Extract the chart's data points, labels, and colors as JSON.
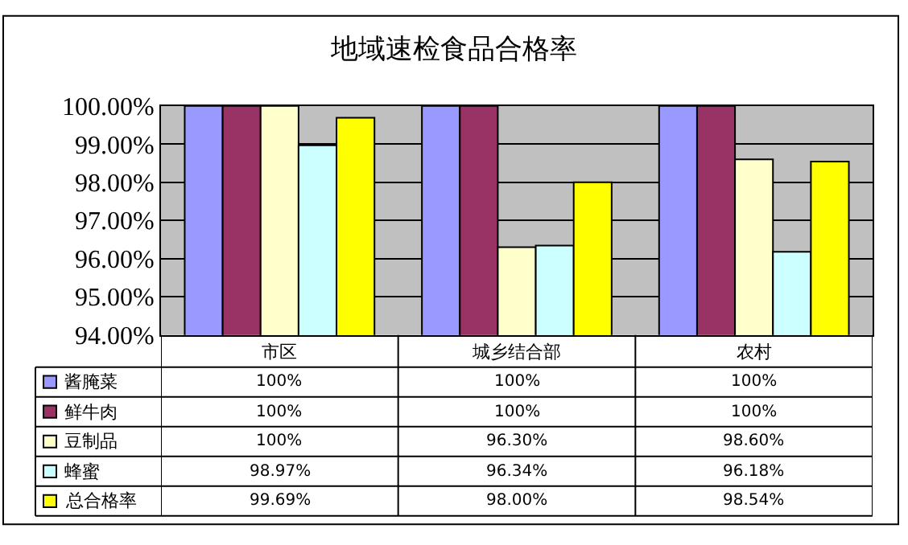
{
  "chart_data": {
    "type": "bar",
    "title": "地域速检食品合格率",
    "categories": [
      "市区",
      "城乡结合部",
      "农村"
    ],
    "series": [
      {
        "name": "酱腌菜",
        "color": "#9999ff",
        "values": [
          100,
          100,
          100
        ],
        "value_labels": [
          "100%",
          "100%",
          "100%"
        ]
      },
      {
        "name": "鲜牛肉",
        "color": "#993366",
        "values": [
          100,
          100,
          100
        ],
        "value_labels": [
          "100%",
          "100%",
          "100%"
        ]
      },
      {
        "name": "豆制品",
        "color": "#ffffcc",
        "values": [
          100,
          96.3,
          98.6
        ],
        "value_labels": [
          "100%",
          "96.30%",
          "98.60%"
        ]
      },
      {
        "name": "蜂蜜",
        "color": "#ccffff",
        "values": [
          98.97,
          96.34,
          96.18
        ],
        "value_labels": [
          "98.97%",
          "96.34%",
          "96.18%"
        ]
      },
      {
        "name": "总合格率",
        "color": "#ffff00",
        "values": [
          99.69,
          98.0,
          98.54
        ],
        "value_labels": [
          "99.69%",
          "98.00%",
          "98.54%"
        ]
      }
    ],
    "ylim": [
      94,
      100
    ],
    "yticks": [
      {
        "value": 94,
        "label": "94.00%"
      },
      {
        "value": 95,
        "label": "95.00%"
      },
      {
        "value": 96,
        "label": "96.00%"
      },
      {
        "value": 97,
        "label": "97.00%"
      },
      {
        "value": 98,
        "label": "98.00%"
      },
      {
        "value": 99,
        "label": "99.00%"
      },
      {
        "value": 100,
        "label": "100.00%"
      }
    ],
    "grid": "y",
    "legend": "bottom left"
  }
}
